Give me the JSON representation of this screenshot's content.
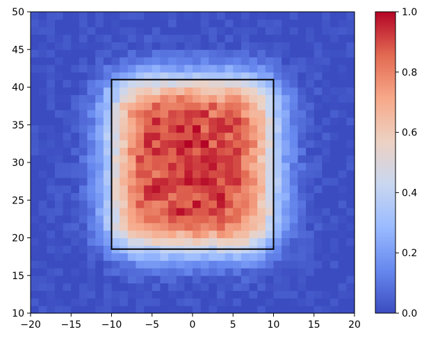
{
  "chart_data": {
    "type": "heatmap",
    "title": "",
    "xlabel": "",
    "ylabel": "",
    "xlim": [
      -20,
      20
    ],
    "ylim": [
      10,
      50
    ],
    "x_ticks": [
      -20,
      -15,
      -10,
      -5,
      0,
      5,
      10,
      15,
      20
    ],
    "y_ticks": [
      10,
      15,
      20,
      25,
      30,
      35,
      40,
      45,
      50
    ],
    "grid": false,
    "colormap": "coolwarm",
    "colormap_stops": [
      "#3b4cc0",
      "#6788ee",
      "#9abbff",
      "#c9d7f0",
      "#edd1c2",
      "#f7a889",
      "#e26952",
      "#b40426"
    ],
    "color_range": [
      0,
      1
    ],
    "colorbar_ticks": [
      0.0,
      0.2,
      0.4,
      0.6,
      0.8,
      1.0
    ],
    "colorbar_tick_labels": [
      "0.0",
      "0.2",
      "0.4",
      "0.6",
      "0.8",
      "1.0"
    ],
    "grid_bins": {
      "nx": 40,
      "ny": 40,
      "x_range": [
        -20,
        20
      ],
      "y_range": [
        10,
        50
      ]
    },
    "value_model": "approx. 1.0 inside the rectangle (x from -10 to 10, y from 18.5 to 41), falling to 0 roughly 2–4 units outside its edges",
    "overlay_rectangle": {
      "x0": -10,
      "x1": 10,
      "y0": 18.5,
      "y1": 41,
      "stroke": "#000000"
    }
  }
}
